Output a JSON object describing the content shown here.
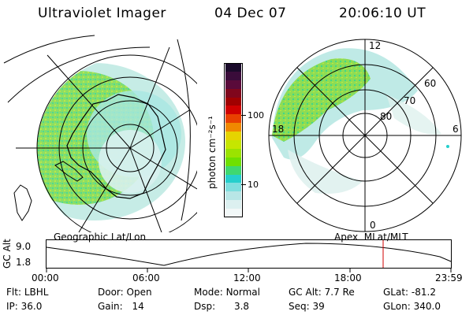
{
  "header": {
    "instrument": "Ultraviolet Imager",
    "date": "04 Dec 07",
    "time": "20:06:10 UT"
  },
  "colorbar": {
    "unit_label": "photon cm⁻²s⁻¹",
    "tick_labels": [
      "100",
      "10"
    ],
    "colors_top_to_bottom": [
      "#1a0a2a",
      "#3a0c3a",
      "#5a0a3a",
      "#80061c",
      "#a00000",
      "#cf0000",
      "#e84000",
      "#f08800",
      "#e6d300",
      "#c6e600",
      "#9be300",
      "#6fe000",
      "#3fd870",
      "#25cfcc",
      "#7fdede",
      "#b8e6e6",
      "#dcf0f0",
      "#f2f8f8"
    ]
  },
  "left_map": {
    "caption": "Geographic Lat/Lon",
    "colors": {
      "aurora": "#7fdc5a",
      "aurora_light": "#a9e6d9",
      "coast": "#000000"
    }
  },
  "right_map": {
    "caption": "Apex  MLat/MLT",
    "mlt_labels": {
      "top": "12",
      "left": "18",
      "right": "6",
      "bottom": "0"
    },
    "mlat_labels": [
      "60",
      "70",
      "80"
    ]
  },
  "alt_panel": {
    "ylabel": "GC Alt",
    "yticks": [
      "9.0",
      "1.8"
    ],
    "time_ticks": [
      "00:00",
      "06:00",
      "12:00",
      "18:00",
      "23:59"
    ],
    "marker_color": "#d00000"
  },
  "info": {
    "flt": {
      "label": "Flt:",
      "value": "LBHL"
    },
    "ip": {
      "label": "IP:",
      "value": "36.0"
    },
    "door": {
      "label": "Door:",
      "value": "Open"
    },
    "gain": {
      "label": "Gain:",
      "value": "14"
    },
    "mode": {
      "label": "Mode:",
      "value": "Normal"
    },
    "dsp": {
      "label": "Dsp:",
      "value": "3.8"
    },
    "gcalt": {
      "label": "GC Alt:",
      "value": "7.7 Re"
    },
    "seq": {
      "label": "Seq:",
      "value": "39"
    },
    "glat": {
      "label": "GLat:",
      "value": "-81.2"
    },
    "glon": {
      "label": "GLon:",
      "value": "340.0"
    }
  }
}
